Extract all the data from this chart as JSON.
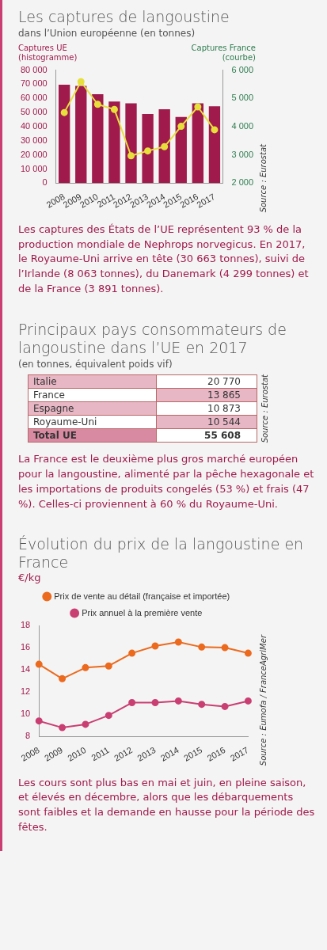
{
  "chart_data": [
    {
      "type": "bar",
      "title": "Les captures de langoustine",
      "subtitle": "dans l’Union européenne (en tonnes)",
      "ylabel": "Captures UE (histogramme)",
      "y2label": "Captures France (courbe)",
      "categories": [
        "2008",
        "2009",
        "2010",
        "2011",
        "2012",
        "2013",
        "2014",
        "2015",
        "2016",
        "2017"
      ],
      "series": [
        {
          "type": "bar",
          "color": "#a01a4b",
          "values": [
            69700,
            68900,
            63000,
            57800,
            56500,
            48900,
            52300,
            46800,
            56500,
            54400
          ]
        },
        {
          "type": "line",
          "axis": "y2",
          "color": "#e6df3c",
          "values": [
            4500,
            5590,
            4790,
            4610,
            2970,
            3140,
            3290,
            4010,
            4700,
            3890
          ]
        }
      ],
      "ylim": [
        0,
        80000
      ],
      "yticks": [
        0,
        {
          "value": 10000,
          "label": "10 000"
        },
        {
          "value": 20000,
          "label": "20 000"
        },
        {
          "value": 30000,
          "label": "30 000"
        },
        {
          "value": 40000,
          "label": "40 000"
        },
        {
          "value": 50000,
          "label": "50 000"
        },
        {
          "value": 60000,
          "label": "60 000"
        },
        {
          "value": 70000,
          "label": "70 000"
        },
        {
          "value": 80000,
          "label": "80 000"
        }
      ],
      "y2lim": [
        2000,
        6000
      ],
      "y2ticks": [
        {
          "value": 2000,
          "label": "2 000"
        },
        {
          "value": 3000,
          "label": "3 000"
        },
        {
          "value": 4000,
          "label": "4 000"
        },
        {
          "value": 5000,
          "label": "5 000"
        },
        {
          "value": 6000,
          "label": "6 000"
        }
      ],
      "grid": false,
      "marker": "circle",
      "annotations": [
        "Source : Eurostat",
        "Les captures des États de l’UE représentent 93 % de la production mondiale de Nephrops norvegicus. En 2017, le Royaume-Uni arrive en tête (30 663 tonnes), suivi de l’Irlande (8 063 tonnes), du Danemark (4 299 tonnes) et de la France (3 891 tonnes)."
      ]
    },
    {
      "type": "other",
      "title": "Principaux pays consommateurs de langoustine dans l’UE en 2017",
      "subtitle": "(en tonnes, équivalent poids vif)",
      "categories": [
        "Italie",
        "France",
        "Espagne",
        "Royaume-Uni",
        "Total UE"
      ],
      "values": [
        20770,
        13865,
        10873,
        10544,
        55608
      ],
      "data_labels": true,
      "annotations": [
        "Source : Eurostat",
        "La France est le deuxième plus gros marché européen pour la langoustine, alimenté par la pêche hexagonale et les importations de produits congelés (53 %) et frais (47 %). Celles-ci proviennent à 60 % du Royaume-Uni."
      ]
    },
    {
      "type": "line",
      "title": "Évolution du prix de la langoustine en France",
      "ylabel": "€/kg",
      "categories": [
        "2008",
        "2009",
        "2010",
        "2011",
        "2012",
        "2013",
        "2014",
        "2015",
        "2016",
        "2017"
      ],
      "series": [
        {
          "name": "Prix de vente au détail (française et importée)",
          "color": "#ec6a1e",
          "values": [
            14.5,
            13.2,
            14.2,
            14.35,
            15.5,
            16.15,
            16.5,
            16.05,
            16.0,
            15.5
          ]
        },
        {
          "name": "Prix annuel à la première vente",
          "color": "#c93f72",
          "values": [
            9.4,
            8.8,
            9.1,
            9.9,
            11.05,
            11.05,
            11.2,
            10.9,
            10.7,
            11.2
          ]
        }
      ],
      "ylim": [
        8,
        18
      ],
      "yticks": [
        8,
        10,
        12,
        14,
        16,
        18
      ],
      "grid": false,
      "legend": "top",
      "marker": "circle",
      "annotations": [
        "Source : Eumofa / FranceAgriMer",
        "Les cours sont plus bas en mai et juin, en pleine saison, et élevés en décembre, alors que les débarquements sont faibles et la demande en hausse pour la période des fêtes."
      ]
    }
  ]
}
